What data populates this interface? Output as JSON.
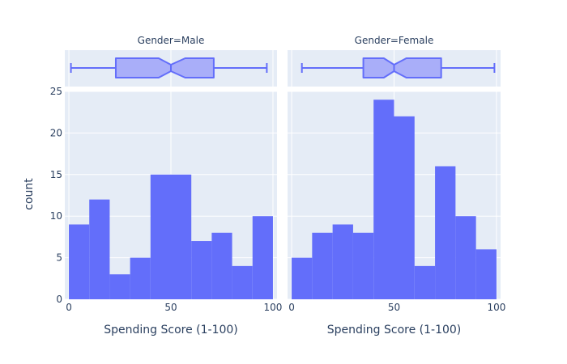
{
  "figure": {
    "ylabel": "count",
    "facets": [
      {
        "title": "Gender=Male",
        "xlabel": "Spending Score (1-100)"
      },
      {
        "title": "Gender=Female",
        "xlabel": "Spending Score (1-100)"
      }
    ]
  },
  "colors": {
    "plot_bg": "#e5ecf6",
    "grid": "#ffffff",
    "bar": "#636efa",
    "box_fill": "#a9aef9",
    "box_line": "#636efa",
    "text": "#2a3f5f"
  },
  "chart_data": [
    {
      "type": "histogram",
      "facet": "Gender=Male",
      "bin_edges": [
        0,
        10,
        20,
        30,
        40,
        50,
        60,
        70,
        80,
        90,
        100
      ],
      "counts": [
        9,
        12,
        3,
        5,
        15,
        15,
        7,
        8,
        4,
        10
      ],
      "xlabel": "Spending Score (1-100)",
      "ylabel": "count",
      "xlim": [
        -2,
        102
      ],
      "ylim": [
        0,
        25
      ],
      "x_ticks": [
        "0",
        "50",
        "100"
      ],
      "y_ticks": [
        "0",
        "5",
        "10",
        "15",
        "20",
        "25"
      ],
      "grid": true,
      "box": {
        "notched": true,
        "min": 1,
        "q1": 23,
        "median": 50,
        "q3": 71,
        "max": 97,
        "notch_low": 44,
        "notch_high": 57
      }
    },
    {
      "type": "histogram",
      "facet": "Gender=Female",
      "bin_edges": [
        0,
        10,
        20,
        30,
        40,
        50,
        60,
        70,
        80,
        90,
        100
      ],
      "counts": [
        5,
        8,
        9,
        8,
        24,
        22,
        4,
        16,
        10,
        6
      ],
      "xlabel": "Spending Score (1-100)",
      "ylabel": "count",
      "xlim": [
        -2,
        102
      ],
      "ylim": [
        0,
        25
      ],
      "x_ticks": [
        "0",
        "50",
        "100"
      ],
      "y_ticks": [
        "0",
        "5",
        "10",
        "15",
        "20",
        "25"
      ],
      "grid": true,
      "box": {
        "notched": true,
        "min": 5,
        "q1": 35,
        "median": 50,
        "q3": 73,
        "max": 99,
        "notch_low": 45,
        "notch_high": 56
      }
    }
  ]
}
